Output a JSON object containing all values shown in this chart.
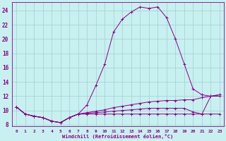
{
  "xlabel": "Windchill (Refroidissement éolien,°C)",
  "background_color": "#c8f0f0",
  "grid_color": "#a0d0d0",
  "line_color": "#880088",
  "xlim": [
    -0.5,
    23.5
  ],
  "ylim": [
    7.8,
    25.2
  ],
  "xticks": [
    0,
    1,
    2,
    3,
    4,
    5,
    6,
    7,
    8,
    9,
    10,
    11,
    12,
    13,
    14,
    15,
    16,
    17,
    18,
    19,
    20,
    21,
    22,
    23
  ],
  "yticks": [
    8,
    10,
    12,
    14,
    16,
    18,
    20,
    22,
    24
  ],
  "hours": [
    0,
    1,
    2,
    3,
    4,
    5,
    6,
    7,
    8,
    9,
    10,
    11,
    12,
    13,
    14,
    15,
    16,
    17,
    18,
    19,
    20,
    21,
    22,
    23
  ],
  "wind_line": [
    10.5,
    9.5,
    9.2,
    9.0,
    8.5,
    8.3,
    9.0,
    9.5,
    10.8,
    13.5,
    16.5,
    21.0,
    22.8,
    23.8,
    24.5,
    24.3,
    24.5,
    23.0,
    20.0,
    16.5,
    13.0,
    12.2,
    12.0,
    12.0
  ],
  "temp_line": [
    10.5,
    9.5,
    9.2,
    9.0,
    8.5,
    8.3,
    9.0,
    9.5,
    9.5,
    9.5,
    9.5,
    9.5,
    9.5,
    9.5,
    9.5,
    9.5,
    9.5,
    9.5,
    9.5,
    9.5,
    9.5,
    9.5,
    9.5,
    9.5
  ],
  "line3": [
    10.5,
    9.5,
    9.2,
    9.0,
    8.5,
    8.3,
    9.0,
    9.5,
    9.7,
    9.9,
    10.1,
    10.4,
    10.6,
    10.8,
    11.0,
    11.2,
    11.3,
    11.4,
    11.4,
    11.5,
    11.5,
    11.8,
    12.0,
    12.2
  ],
  "line4": [
    10.5,
    9.5,
    9.2,
    9.0,
    8.5,
    8.3,
    9.0,
    9.5,
    9.6,
    9.7,
    9.8,
    9.9,
    10.0,
    10.1,
    10.2,
    10.3,
    10.3,
    10.3,
    10.3,
    10.3,
    9.8,
    9.5,
    12.0,
    12.2
  ]
}
